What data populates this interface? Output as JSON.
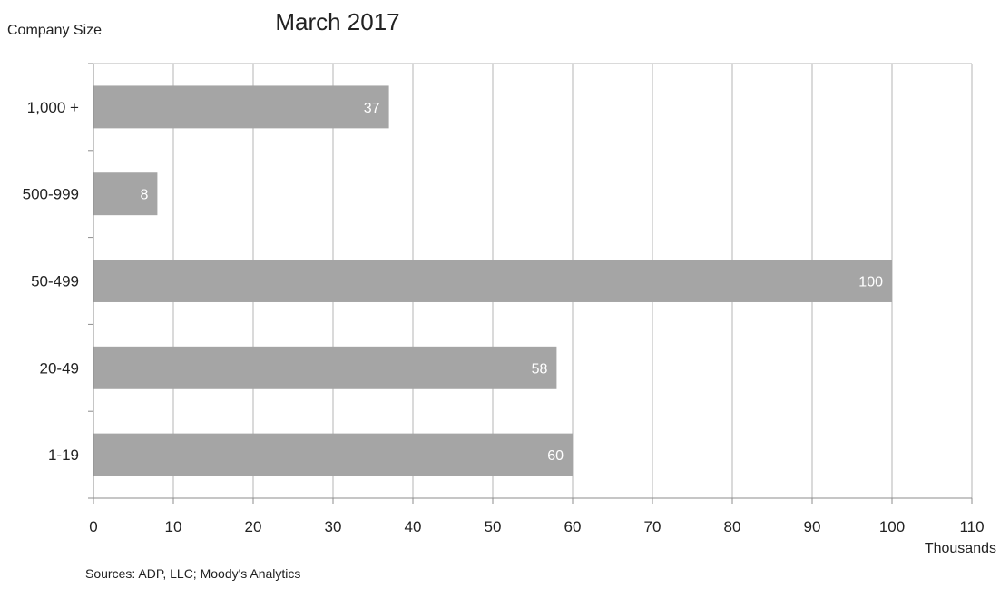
{
  "chart_data": {
    "type": "bar",
    "orientation": "horizontal",
    "title": "March 2017",
    "ylabel": "Company Size",
    "xlabel": "",
    "x_unit_label": "Thousands",
    "source": "Sources: ADP, LLC; Moody's Analytics",
    "categories": [
      "1,000 +",
      "500-999",
      "50-499",
      "20-49",
      "1-19"
    ],
    "values": [
      37,
      8,
      100,
      58,
      60
    ],
    "data_labels": [
      "37",
      "8",
      "100",
      "58",
      "60"
    ],
    "xlim": [
      0,
      110
    ],
    "x_ticks": [
      0,
      10,
      20,
      30,
      40,
      50,
      60,
      70,
      80,
      90,
      100,
      110
    ],
    "x_tick_labels": [
      "0",
      "10",
      "20",
      "30",
      "40",
      "50",
      "60",
      "70",
      "80",
      "90",
      "100",
      "110"
    ],
    "grid": "vertical",
    "legend": "none",
    "colors": {
      "bar": "#a5a5a5",
      "bar_label": "#ffffff",
      "grid": "#b4b4b4",
      "axis": "#8c8c8c",
      "plot_border": "#b4b4b4",
      "text": "#222222"
    }
  }
}
